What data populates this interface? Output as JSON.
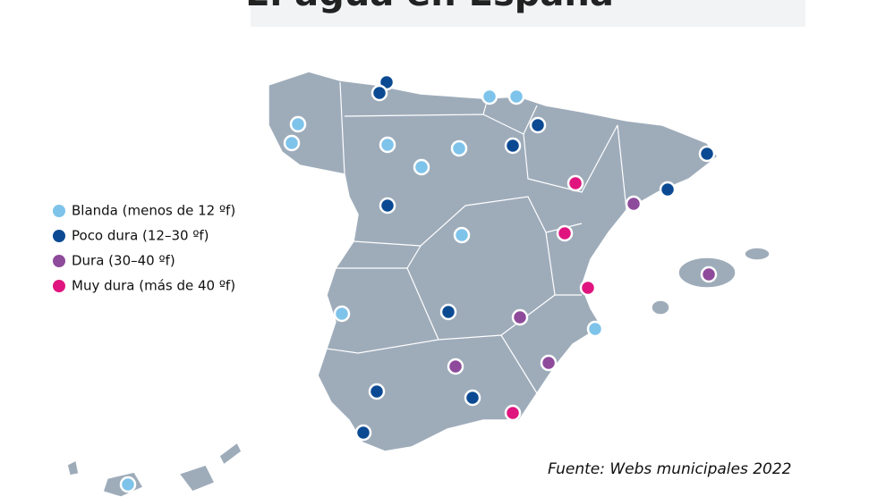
{
  "title": "El agua en España",
  "legend": [
    {
      "label": "Blanda (menos de 12 ºf)",
      "color": "#7ec3ea"
    },
    {
      "label": "Poco dura (12–30 ºf)",
      "color": "#0b4a93"
    },
    {
      "label": "Dura (30–40 ºf)",
      "color": "#8e4a9b"
    },
    {
      "label": "Muy dura (más de 40 ºf)",
      "color": "#e0147e"
    }
  ],
  "source": "Fuente: Webs municipales 2022"
}
